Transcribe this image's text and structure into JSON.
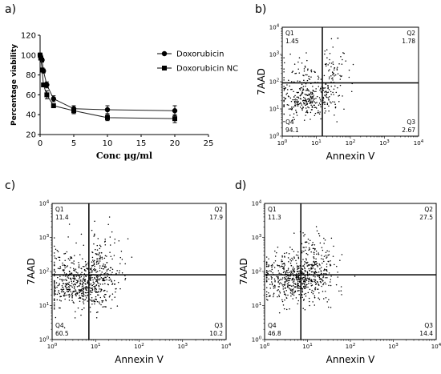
{
  "chart_data": [
    {
      "panel": "a)",
      "type": "line",
      "xlabel": "Conc μg/ml",
      "ylabel": "Percentage viability",
      "xlim": [
        0,
        25
      ],
      "ylim": [
        20,
        120
      ],
      "xticks": [
        "0",
        "5",
        "10",
        "15",
        "20",
        "25"
      ],
      "yticks": [
        "20",
        "40",
        "60",
        "80",
        "100",
        "120"
      ],
      "legend_position": "right",
      "grid": false,
      "series": [
        {
          "name": "Doxorubicin",
          "marker": "circle",
          "x": [
            0,
            0.1,
            0.3,
            0.5,
            1,
            2,
            5,
            10,
            20
          ],
          "y": [
            100,
            98,
            95,
            84,
            70,
            56,
            46,
            45,
            44
          ],
          "err": [
            2,
            2,
            2,
            2,
            3,
            3,
            3,
            4,
            5
          ]
        },
        {
          "name": "Doxorubicin NC",
          "marker": "square",
          "x": [
            0,
            0.1,
            0.3,
            0.5,
            1,
            2,
            5,
            10,
            20
          ],
          "y": [
            100,
            97,
            85,
            70,
            60,
            49,
            44,
            37,
            36
          ],
          "err": [
            2,
            2,
            2,
            2,
            4,
            2,
            3,
            3,
            4
          ]
        }
      ]
    },
    {
      "panel": "b)",
      "type": "scatter",
      "xlabel": "Annexin V",
      "ylabel": "7AAD",
      "xscale": "log",
      "yscale": "log",
      "xlim": [
        1,
        10000
      ],
      "ylim": [
        1,
        10000
      ],
      "gate": {
        "x": 15,
        "y": 90
      },
      "quadrants": {
        "Q1": "1.45",
        "Q2": "1.78",
        "Q3": "2.67",
        "Q4": "94.1"
      },
      "population": {
        "center_x_log": 0.75,
        "center_y_log": 1.35,
        "n": 420
      }
    },
    {
      "panel": "c)",
      "type": "scatter",
      "xlabel": "Annexin V",
      "ylabel": "7AAD",
      "xscale": "log",
      "yscale": "log",
      "xlim": [
        1,
        10000
      ],
      "ylim": [
        1,
        10000
      ],
      "gate": {
        "x": 7,
        "y": 80
      },
      "quadrants": {
        "Q1": "11.4",
        "Q2": "17.9",
        "Q3": "10.2",
        "Q4": "60.5"
      },
      "population": {
        "center_x_log": 0.6,
        "center_y_log": 1.55,
        "n": 700
      }
    },
    {
      "panel": "d)",
      "type": "scatter",
      "xlabel": "Annexin V",
      "ylabel": "7AAD",
      "xscale": "log",
      "yscale": "log",
      "xlim": [
        1,
        10000
      ],
      "ylim": [
        1,
        10000
      ],
      "gate": {
        "x": 7,
        "y": 80
      },
      "quadrants": {
        "Q1": "11.3",
        "Q2": "27.5",
        "Q3": "14.4",
        "Q4": "46.8"
      },
      "population": {
        "center_x_log": 0.75,
        "center_y_log": 1.75,
        "n": 700
      }
    }
  ]
}
